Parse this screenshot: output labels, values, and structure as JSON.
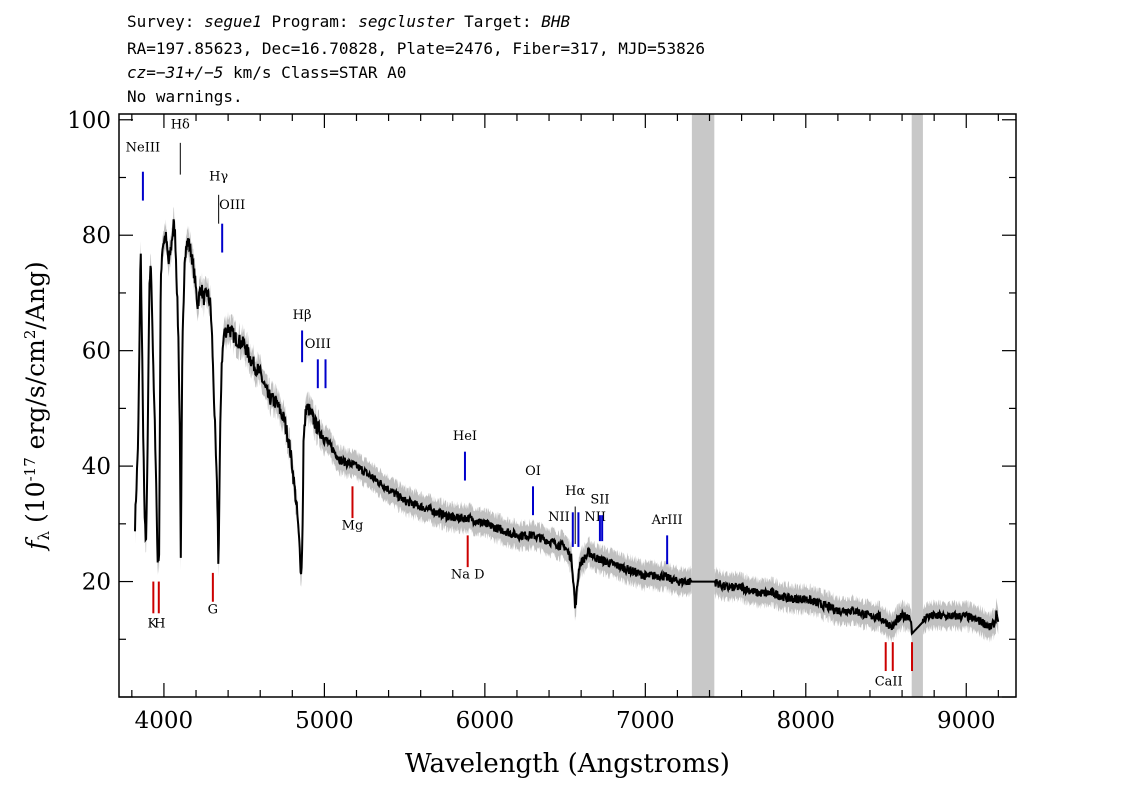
{
  "header": {
    "line1": {
      "survey_label": "Survey: ",
      "survey": "segue1",
      "program_label": " Program: ",
      "program": "segcluster",
      "target_label": " Target: ",
      "target": "BHB"
    },
    "line2": "RA=197.85623, Dec=16.70828, Plate=2476, Fiber=317, MJD=53826",
    "line3": {
      "cz": "cz=−31+/−5",
      "rest": " km/s Class=STAR A0"
    },
    "line4": "No warnings."
  },
  "chart_data": {
    "type": "line",
    "xlabel": "Wavelength (Angstroms)",
    "ylabel": "f_λ (10^-17 erg/s/cm^2/Ang)",
    "xlim": [
      3720,
      9310
    ],
    "ylim": [
      0,
      101
    ],
    "x_ticks": [
      4000,
      5000,
      6000,
      7000,
      8000,
      9000
    ],
    "y_ticks": [
      20,
      40,
      60,
      80,
      100
    ],
    "masked_regions": [
      [
        7290,
        7430
      ],
      [
        8660,
        8730
      ]
    ],
    "colors": {
      "flux": "#000000",
      "error": "#c0c0c0",
      "emission": "#0000cc",
      "absorption": "#cc0000",
      "balmer": "#000000",
      "mask": "#c8c8c8"
    },
    "spectrum": {
      "x": [
        3820,
        3840,
        3855,
        3870,
        3880,
        3890,
        3900,
        3910,
        3920,
        3935,
        3950,
        3960,
        3970,
        3980,
        3990,
        4010,
        4030,
        4045,
        4060,
        4070,
        4080,
        4090,
        4100,
        4105,
        4115,
        4130,
        4150,
        4170,
        4190,
        4210,
        4230,
        4250,
        4270,
        4290,
        4300,
        4320,
        4335,
        4340,
        4350,
        4360,
        4375,
        4400,
        4450,
        4500,
        4550,
        4600,
        4650,
        4700,
        4750,
        4780,
        4800,
        4830,
        4850,
        4855,
        4862,
        4870,
        4885,
        4900,
        4950,
        5000,
        5050,
        5100,
        5200,
        5300,
        5400,
        5500,
        5600,
        5700,
        5800,
        5900,
        6000,
        6100,
        6200,
        6300,
        6400,
        6500,
        6540,
        6555,
        6563,
        6572,
        6590,
        6650,
        6700,
        6800,
        6900,
        7000,
        7100,
        7200,
        7290,
        7430,
        7500,
        7600,
        7700,
        7800,
        7900,
        8000,
        8100,
        8200,
        8300,
        8400,
        8450,
        8500,
        8542,
        8560,
        8600,
        8650,
        8662,
        8730,
        8750,
        8800,
        8900,
        9000,
        9100,
        9150,
        9180,
        9190,
        9200
      ],
      "y": [
        30,
        45,
        78,
        48,
        30,
        27,
        47,
        72,
        75,
        55,
        40,
        24,
        25,
        72,
        78,
        80,
        75,
        78,
        82,
        80,
        72,
        62,
        45,
        23,
        60,
        77,
        79,
        77,
        73,
        68,
        71,
        69,
        70,
        68,
        62,
        45,
        32,
        22,
        45,
        58,
        63,
        64,
        62,
        61,
        58,
        56,
        52,
        51,
        48,
        44,
        40,
        32,
        24,
        21,
        26,
        44,
        50,
        50,
        47,
        45,
        43,
        41,
        40,
        38,
        36,
        34,
        33,
        32,
        31,
        31,
        30,
        29,
        28,
        28,
        27,
        26,
        24,
        19,
        15,
        18,
        23,
        25,
        24,
        23,
        22,
        21,
        21,
        20,
        20,
        20,
        19,
        19,
        18,
        18,
        17,
        17,
        16,
        15,
        15,
        14,
        14,
        13,
        12,
        13,
        14,
        14,
        11,
        13,
        14,
        14,
        14,
        14,
        13,
        12,
        13,
        15,
        12
      ]
    },
    "lines": [
      {
        "label": "NeIII",
        "x": 3869,
        "kind": "emission"
      },
      {
        "label": "Hδ",
        "x": 4102,
        "kind": "balmer"
      },
      {
        "label": "Hγ",
        "x": 4341,
        "kind": "balmer"
      },
      {
        "label": "OIII",
        "x": 4363,
        "kind": "emission"
      },
      {
        "label": "Hβ",
        "x": 4861,
        "kind": "emission"
      },
      {
        "label": "OIII",
        "x": 4959,
        "kind": "emission"
      },
      {
        "label": "",
        "x": 5007,
        "kind": "emission"
      },
      {
        "label": "HeI",
        "x": 5876,
        "kind": "emission"
      },
      {
        "label": "OI",
        "x": 6300,
        "kind": "emission"
      },
      {
        "label": "NII",
        "x": 6548,
        "kind": "emission"
      },
      {
        "label": "Hα",
        "x": 6563,
        "kind": "balmer"
      },
      {
        "label": "NII",
        "x": 6583,
        "kind": "emission"
      },
      {
        "label": "SII",
        "x": 6717,
        "kind": "emission"
      },
      {
        "label": "",
        "x": 6731,
        "kind": "emission"
      },
      {
        "label": "ArIII",
        "x": 7136,
        "kind": "emission"
      },
      {
        "label": "Mg",
        "x": 5175,
        "kind": "absorption"
      },
      {
        "label": "K",
        "x": 3934,
        "kind": "absorption"
      },
      {
        "label": "H",
        "x": 3968,
        "kind": "absorption"
      },
      {
        "label": "G",
        "x": 4305,
        "kind": "absorption"
      },
      {
        "label": "Na D",
        "x": 5893,
        "kind": "absorption"
      },
      {
        "label": "CaII",
        "x": 8498,
        "kind": "absorption"
      },
      {
        "label": "",
        "x": 8542,
        "kind": "absorption"
      },
      {
        "label": "",
        "x": 8662,
        "kind": "absorption"
      }
    ]
  }
}
